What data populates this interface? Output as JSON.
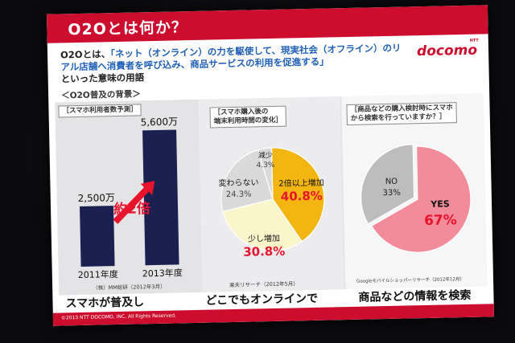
{
  "slide": {
    "title": "O2Oとは何か？",
    "logo_small": "NTT",
    "logo": "docomo",
    "intro_prefix": "O2Oとは、",
    "intro_quote": "「ネット（オンライン）の力を駆使して、現実社会（オフライン）のリアル店舗へ消費者を呼び込み、商品サービスの利用を促進する」",
    "intro_suffix": "といった意味の用語",
    "section_title": "＜O2O普及の背景＞",
    "copyright": "©2013 NTT DOCOMO, INC. All Rights Reserved."
  },
  "panel1": {
    "caption": "［スマホ利用者数予測］",
    "multiplier": "約2倍",
    "source": "（株）MM総研（2012年3月）",
    "bottom": "スマホが普及し"
  },
  "panel2": {
    "caption_line1": "［スマホ購入後の",
    "caption_line2": "端末利用時間の変化］",
    "source": "楽天リサーチ（2012年5月）",
    "bottom": "どこでもオンラインで"
  },
  "panel3": {
    "caption_line1": "［商品などの購入検討時にスマホ",
    "caption_line2": "から検索を行っていますか？］",
    "source": "Googleモバイルショッパーリサーチ（2012年12月）",
    "bottom": "商品などの情報を検索"
  },
  "colors": {
    "brand_red": "#cc0d2e",
    "navy": "#1a2050",
    "yellow": "#f2b511",
    "cream": "#fbf5cc",
    "light_gray": "#dadada",
    "pink": "#f28b9a",
    "gray": "#bdbdbd",
    "quote_blue": "#1f5fb8"
  },
  "chart_data": [
    {
      "type": "bar",
      "categories": [
        "2011年度",
        "2013年度"
      ],
      "values": [
        2500,
        5600
      ],
      "data_labels": [
        "2,500万",
        "5,600万"
      ],
      "ylim": [
        0,
        6000
      ]
    },
    {
      "type": "pie",
      "labels": [
        "2倍以上増加",
        "少し増加",
        "変わらない",
        "減少"
      ],
      "values": [
        40.8,
        30.8,
        24.3,
        4.3
      ],
      "value_labels": [
        "40.8%",
        "30.8%",
        "24.3%",
        "4.3%"
      ]
    },
    {
      "type": "pie",
      "labels": [
        "YES",
        "NO"
      ],
      "values": [
        67,
        33
      ],
      "value_labels": [
        "67%",
        "33%"
      ]
    }
  ]
}
